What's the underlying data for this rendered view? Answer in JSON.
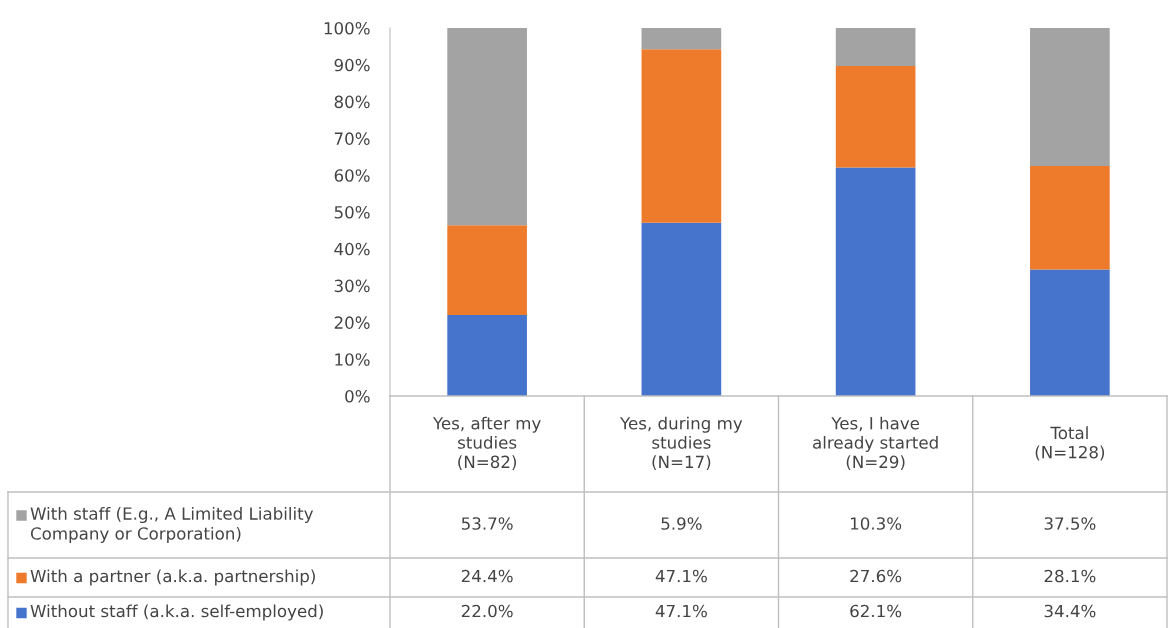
{
  "chart_data": {
    "type": "bar",
    "stacked": true,
    "categories": [
      "Yes, after my\nstudies\n(N=82)",
      "Yes, during my\nstudies\n(N=17)",
      "Yes, I have\nalready started\n(N=29)",
      "Total\n(N=128)"
    ],
    "series": [
      {
        "name": "Without staff (a.k.a. self-employed)",
        "color": "#4674cc",
        "values": [
          22.0,
          47.1,
          62.1,
          34.4
        ],
        "value_labels": [
          "22.0%",
          "47.1%",
          "62.1%",
          "34.4%"
        ]
      },
      {
        "name": "With a partner (a.k.a. partnership)",
        "color": "#ee7a2c",
        "values": [
          24.4,
          47.1,
          27.6,
          28.1
        ],
        "value_labels": [
          "24.4%",
          "47.1%",
          "27.6%",
          "28.1%"
        ]
      },
      {
        "name": "With staff (E.g., A Limited Liability\nCompany or Corporation)",
        "color": "#a3a3a3",
        "values": [
          53.7,
          5.9,
          10.3,
          37.5
        ],
        "value_labels": [
          "53.7%",
          "5.9%",
          "10.3%",
          "37.5%"
        ]
      }
    ],
    "ylim": [
      0,
      100
    ],
    "yticks": [
      {
        "value": 0,
        "label": "0%"
      },
      {
        "value": 10,
        "label": "10%"
      },
      {
        "value": 20,
        "label": "20%"
      },
      {
        "value": 30,
        "label": "30%"
      },
      {
        "value": 40,
        "label": "40%"
      },
      {
        "value": 50,
        "label": "50%"
      },
      {
        "value": 60,
        "label": "60%"
      },
      {
        "value": 70,
        "label": "70%"
      },
      {
        "value": 80,
        "label": "80%"
      },
      {
        "value": 90,
        "label": "90%"
      },
      {
        "value": 100,
        "label": "100%"
      }
    ],
    "grid": false,
    "legend": "bottom"
  }
}
